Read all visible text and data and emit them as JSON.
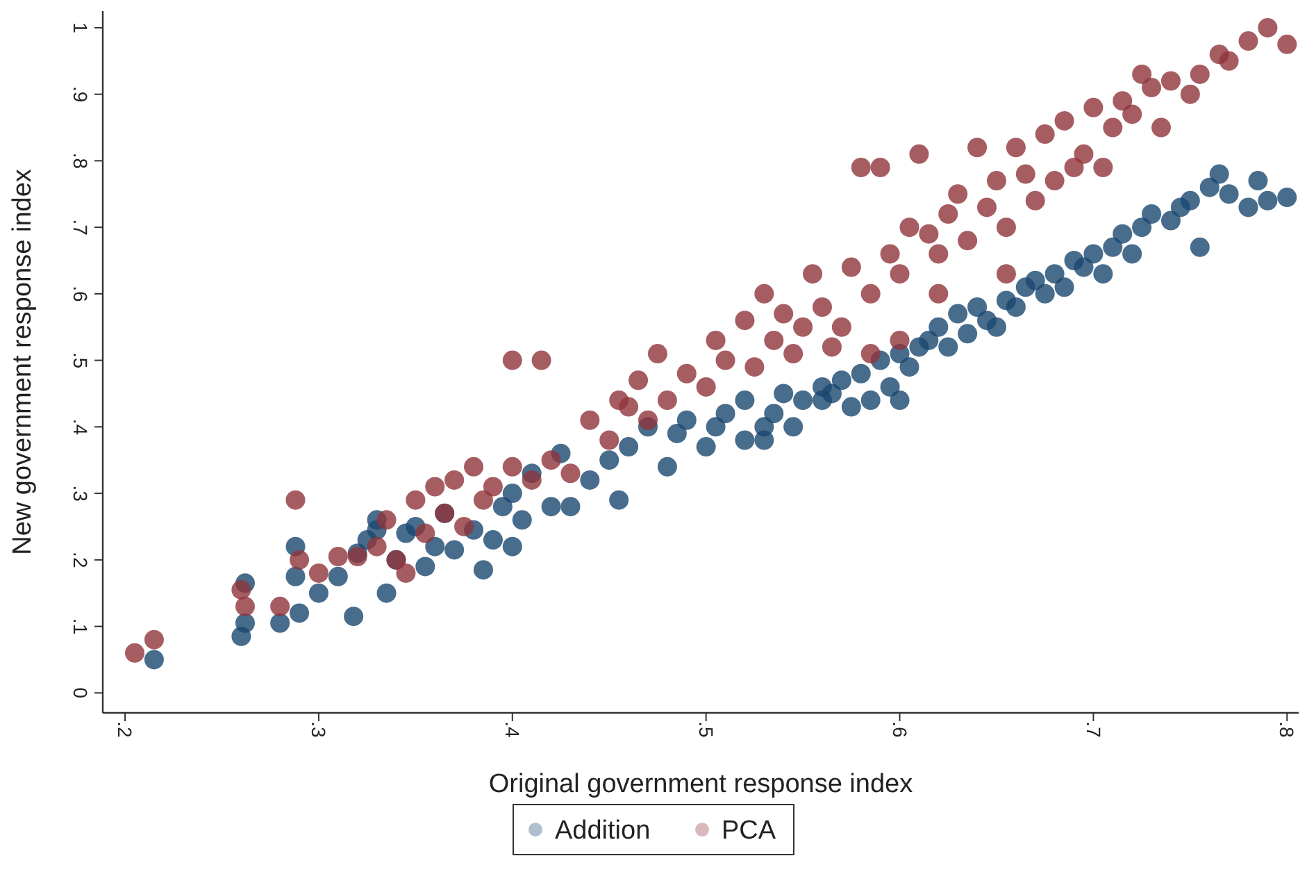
{
  "chart_data": {
    "type": "scatter",
    "xlabel": "Original government response index",
    "ylabel": "New government response index",
    "xlim": [
      0.1885,
      0.806
    ],
    "ylim": [
      -0.03,
      1.025
    ],
    "xticks": [
      {
        "value": 0.2,
        "label": ".2"
      },
      {
        "value": 0.3,
        "label": ".3"
      },
      {
        "value": 0.4,
        "label": ".4"
      },
      {
        "value": 0.5,
        "label": ".5"
      },
      {
        "value": 0.6,
        "label": ".6"
      },
      {
        "value": 0.7,
        "label": ".7"
      },
      {
        "value": 0.8,
        "label": ".8"
      }
    ],
    "yticks": [
      0,
      {
        "value": 0.1,
        "label": ".1"
      },
      {
        "value": 0.2,
        "label": ".2"
      },
      {
        "value": 0.3,
        "label": ".3"
      },
      {
        "value": 0.4,
        "label": ".4"
      },
      {
        "value": 0.5,
        "label": ".5"
      },
      {
        "value": 0.6,
        "label": ".6"
      },
      {
        "value": 0.7,
        "label": ".7"
      },
      {
        "value": 0.8,
        "label": ".8"
      },
      {
        "value": 0.9,
        "label": ".9"
      },
      1
    ],
    "grid": false,
    "legend": "bottom",
    "marker": "circle",
    "series": [
      {
        "name": "Addition",
        "color": "#1a476f",
        "x": [
          0.215,
          0.26,
          0.262,
          0.262,
          0.28,
          0.29,
          0.288,
          0.288,
          0.3,
          0.31,
          0.318,
          0.32,
          0.325,
          0.33,
          0.335,
          0.33,
          0.34,
          0.345,
          0.35,
          0.355,
          0.36,
          0.365,
          0.37,
          0.38,
          0.385,
          0.39,
          0.395,
          0.4,
          0.4,
          0.405,
          0.41,
          0.42,
          0.425,
          0.43,
          0.44,
          0.45,
          0.455,
          0.46,
          0.47,
          0.48,
          0.485,
          0.49,
          0.5,
          0.505,
          0.51,
          0.52,
          0.53,
          0.535,
          0.54,
          0.545,
          0.55,
          0.56,
          0.565,
          0.57,
          0.575,
          0.58,
          0.585,
          0.59,
          0.595,
          0.6,
          0.605,
          0.61,
          0.615,
          0.62,
          0.625,
          0.63,
          0.635,
          0.64,
          0.645,
          0.65,
          0.655,
          0.66,
          0.665,
          0.67,
          0.675,
          0.68,
          0.685,
          0.69,
          0.695,
          0.7,
          0.705,
          0.71,
          0.715,
          0.72,
          0.725,
          0.73,
          0.74,
          0.745,
          0.75,
          0.755,
          0.76,
          0.765,
          0.77,
          0.78,
          0.785,
          0.79,
          0.8,
          0.6,
          0.56,
          0.53,
          0.52
        ],
        "values": [
          0.05,
          0.085,
          0.105,
          0.165,
          0.105,
          0.12,
          0.175,
          0.22,
          0.15,
          0.175,
          0.115,
          0.21,
          0.23,
          0.245,
          0.15,
          0.26,
          0.2,
          0.24,
          0.25,
          0.19,
          0.22,
          0.27,
          0.215,
          0.245,
          0.185,
          0.23,
          0.28,
          0.22,
          0.3,
          0.26,
          0.33,
          0.28,
          0.36,
          0.28,
          0.32,
          0.35,
          0.29,
          0.37,
          0.4,
          0.34,
          0.39,
          0.41,
          0.37,
          0.4,
          0.42,
          0.38,
          0.4,
          0.42,
          0.45,
          0.4,
          0.44,
          0.46,
          0.45,
          0.47,
          0.43,
          0.48,
          0.44,
          0.5,
          0.46,
          0.51,
          0.49,
          0.52,
          0.53,
          0.55,
          0.52,
          0.57,
          0.54,
          0.58,
          0.56,
          0.55,
          0.59,
          0.58,
          0.61,
          0.62,
          0.6,
          0.63,
          0.61,
          0.65,
          0.64,
          0.66,
          0.63,
          0.67,
          0.69,
          0.66,
          0.7,
          0.72,
          0.71,
          0.73,
          0.74,
          0.67,
          0.76,
          0.78,
          0.75,
          0.73,
          0.77,
          0.74,
          0.745,
          0.44,
          0.44,
          0.38,
          0.44
        ]
      },
      {
        "name": "PCA",
        "color": "#90353b",
        "x": [
          0.205,
          0.215,
          0.26,
          0.262,
          0.28,
          0.288,
          0.29,
          0.3,
          0.31,
          0.32,
          0.33,
          0.335,
          0.34,
          0.345,
          0.35,
          0.355,
          0.36,
          0.365,
          0.37,
          0.375,
          0.38,
          0.385,
          0.39,
          0.4,
          0.4,
          0.415,
          0.41,
          0.42,
          0.43,
          0.44,
          0.45,
          0.455,
          0.46,
          0.465,
          0.47,
          0.475,
          0.48,
          0.49,
          0.5,
          0.505,
          0.51,
          0.52,
          0.525,
          0.53,
          0.535,
          0.54,
          0.545,
          0.55,
          0.555,
          0.56,
          0.565,
          0.57,
          0.575,
          0.58,
          0.585,
          0.59,
          0.595,
          0.6,
          0.605,
          0.61,
          0.615,
          0.62,
          0.625,
          0.63,
          0.635,
          0.64,
          0.645,
          0.65,
          0.655,
          0.66,
          0.665,
          0.67,
          0.675,
          0.68,
          0.685,
          0.69,
          0.695,
          0.7,
          0.705,
          0.71,
          0.715,
          0.72,
          0.725,
          0.73,
          0.735,
          0.74,
          0.75,
          0.755,
          0.765,
          0.77,
          0.78,
          0.79,
          0.8,
          0.585,
          0.6,
          0.62,
          0.655
        ],
        "values": [
          0.06,
          0.08,
          0.155,
          0.13,
          0.13,
          0.29,
          0.2,
          0.18,
          0.205,
          0.205,
          0.22,
          0.26,
          0.2,
          0.18,
          0.29,
          0.24,
          0.31,
          0.27,
          0.32,
          0.25,
          0.34,
          0.29,
          0.31,
          0.34,
          0.5,
          0.5,
          0.32,
          0.35,
          0.33,
          0.41,
          0.38,
          0.44,
          0.43,
          0.47,
          0.41,
          0.51,
          0.44,
          0.48,
          0.46,
          0.53,
          0.5,
          0.56,
          0.49,
          0.6,
          0.53,
          0.57,
          0.51,
          0.55,
          0.63,
          0.58,
          0.52,
          0.55,
          0.64,
          0.79,
          0.6,
          0.79,
          0.66,
          0.63,
          0.7,
          0.81,
          0.69,
          0.66,
          0.72,
          0.75,
          0.68,
          0.82,
          0.73,
          0.77,
          0.7,
          0.82,
          0.78,
          0.74,
          0.84,
          0.77,
          0.86,
          0.79,
          0.81,
          0.88,
          0.79,
          0.85,
          0.89,
          0.87,
          0.93,
          0.91,
          0.85,
          0.92,
          0.9,
          0.93,
          0.96,
          0.95,
          0.98,
          1.0,
          0.975,
          0.51,
          0.53,
          0.6,
          0.63
        ]
      }
    ]
  }
}
